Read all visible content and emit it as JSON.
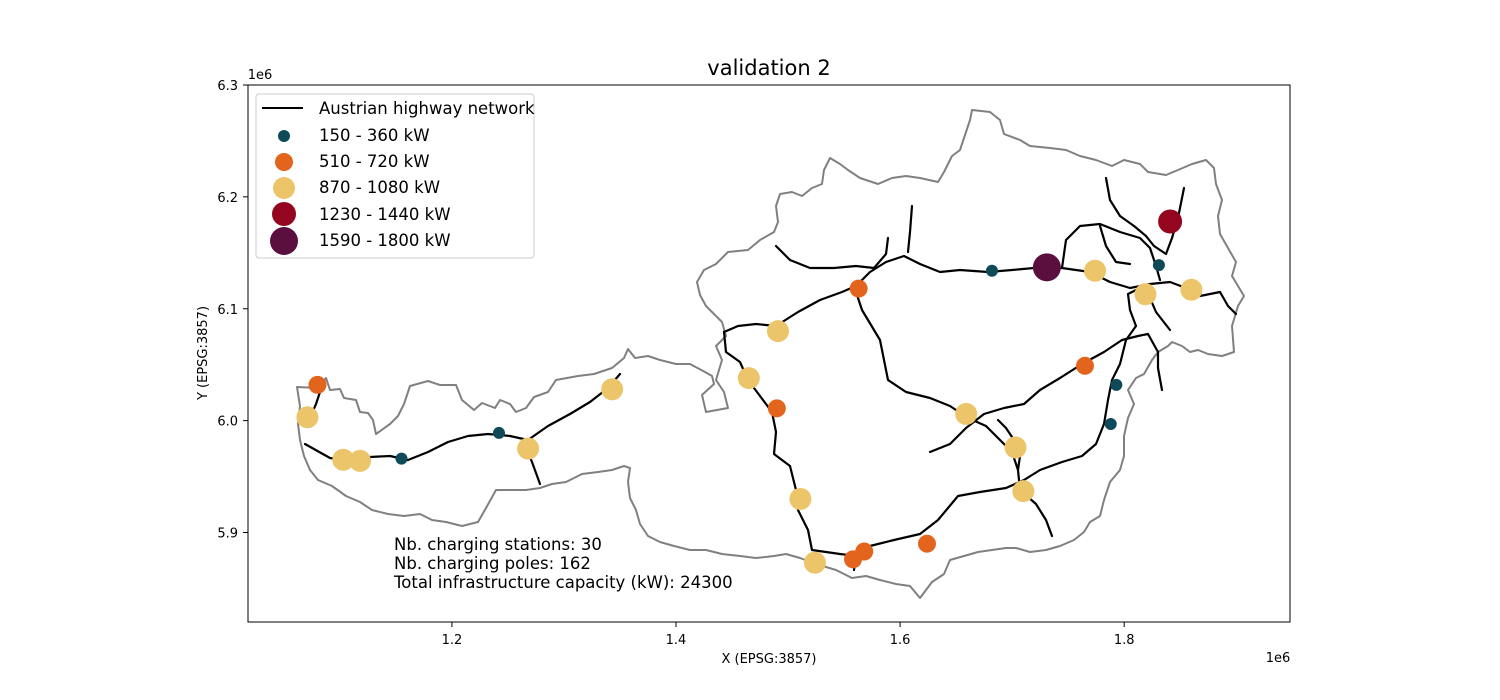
{
  "chart_data": {
    "type": "scatter",
    "title": "validation 2",
    "xlabel": "X (EPSG:3857)",
    "ylabel": "Y (EPSG:3857)",
    "x_offset_label": "1e6",
    "y_offset_label": "1e6",
    "xlim": [
      1.018,
      1.948
    ],
    "ylim": [
      5.82,
      6.3
    ],
    "xticks": [
      1.2,
      1.4,
      1.6,
      1.8
    ],
    "yticks": [
      5.9,
      6.0,
      6.1,
      6.2,
      6.3
    ],
    "xtick_labels": [
      "1.2",
      "1.4",
      "1.6",
      "1.8"
    ],
    "ytick_labels": [
      "5.9",
      "6.0",
      "6.1",
      "6.2",
      "6.3"
    ],
    "legend_position": "upper-left",
    "legend": [
      {
        "label": "Austrian highway network",
        "kind": "line",
        "color": "#000000"
      },
      {
        "label": "150 - 360 kW",
        "kind": "marker",
        "color": "#0f4a58",
        "size": 6
      },
      {
        "label": "510 - 720 kW",
        "kind": "marker",
        "color": "#e3651d",
        "size": 9
      },
      {
        "label": "870 - 1080 kW",
        "kind": "marker",
        "color": "#ecc46a",
        "size": 11
      },
      {
        "label": "1230 - 1440 kW",
        "kind": "marker",
        "color": "#94061f",
        "size": 12
      },
      {
        "label": "1590 - 1800 kW",
        "kind": "marker",
        "color": "#5b0f3f",
        "size": 14
      }
    ],
    "stations": [
      {
        "x": 1.08,
        "y": 6.032,
        "class": 1
      },
      {
        "x": 1.071,
        "y": 6.003,
        "class": 2
      },
      {
        "x": 1.103,
        "y": 5.965,
        "class": 2
      },
      {
        "x": 1.118,
        "y": 5.964,
        "class": 2
      },
      {
        "x": 1.155,
        "y": 5.966,
        "class": 0
      },
      {
        "x": 1.242,
        "y": 5.989,
        "class": 0
      },
      {
        "x": 1.268,
        "y": 5.975,
        "class": 2
      },
      {
        "x": 1.343,
        "y": 6.028,
        "class": 2
      },
      {
        "x": 1.465,
        "y": 6.038,
        "class": 2
      },
      {
        "x": 1.49,
        "y": 6.011,
        "class": 1
      },
      {
        "x": 1.491,
        "y": 6.08,
        "class": 2
      },
      {
        "x": 1.511,
        "y": 5.93,
        "class": 2
      },
      {
        "x": 1.524,
        "y": 5.873,
        "class": 2
      },
      {
        "x": 1.558,
        "y": 5.876,
        "class": 1
      },
      {
        "x": 1.568,
        "y": 5.883,
        "class": 1
      },
      {
        "x": 1.563,
        "y": 6.118,
        "class": 1
      },
      {
        "x": 1.624,
        "y": 5.89,
        "class": 1
      },
      {
        "x": 1.659,
        "y": 6.006,
        "class": 2
      },
      {
        "x": 1.682,
        "y": 6.134,
        "class": 0
      },
      {
        "x": 1.703,
        "y": 5.976,
        "class": 2
      },
      {
        "x": 1.71,
        "y": 5.937,
        "class": 2
      },
      {
        "x": 1.731,
        "y": 6.137,
        "class": 4
      },
      {
        "x": 1.774,
        "y": 6.134,
        "class": 2
      },
      {
        "x": 1.765,
        "y": 6.049,
        "class": 1
      },
      {
        "x": 1.793,
        "y": 6.032,
        "class": 0
      },
      {
        "x": 1.788,
        "y": 5.997,
        "class": 0
      },
      {
        "x": 1.819,
        "y": 6.113,
        "class": 2
      },
      {
        "x": 1.831,
        "y": 6.139,
        "class": 0
      },
      {
        "x": 1.841,
        "y": 6.178,
        "class": 3
      },
      {
        "x": 1.86,
        "y": 6.117,
        "class": 2
      }
    ],
    "annotations": [
      "Nb. charging stations: 30",
      "Nb. charging poles: 162",
      "Total infrastructure capacity (kW): 24300"
    ]
  }
}
